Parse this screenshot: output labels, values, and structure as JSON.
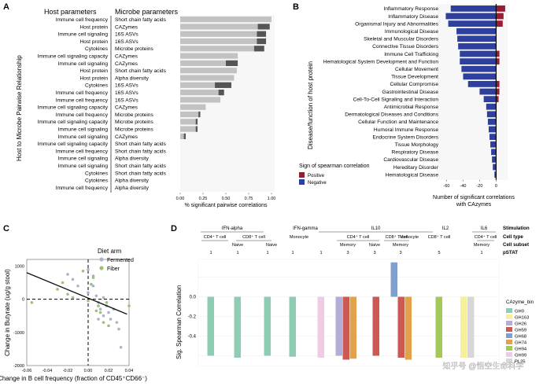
{
  "panels": {
    "a": {
      "letter": "A",
      "header_host": "Host parameters",
      "header_microbe": "Microbe parameters",
      "ylabel": "Host to Microbe Pairwise Relationship",
      "xlabel": "% significant pairwise correlations",
      "xticks": [
        "0.00",
        "0.25",
        "0.50",
        "0.75",
        "1.00"
      ]
    },
    "b": {
      "letter": "B",
      "ylabel": "Disease/function of host protein",
      "xlabel_line1": "Number of significant correlations",
      "xlabel_line2": "with CAzymes",
      "xticks": [
        "-60",
        "-40",
        "-20",
        "0"
      ],
      "legend_title": "Sign of spearman correlation",
      "legend_positive": "Positive",
      "legend_negative": "Negative"
    },
    "c": {
      "letter": "C",
      "legend_title": "Diet arm",
      "legend_fermented": "Fermented",
      "legend_fiber": "Fiber",
      "ylabel": "Change in Butyrate (ug/g stool)",
      "xlabel": "Change in B cell frequency (fraction of CD45⁺CD66⁻)",
      "yticks": [
        "1000",
        "0",
        "-1000",
        "-2000"
      ],
      "xticks": [
        "-0.06",
        "-0.04",
        "-0.02",
        "0.00",
        "0.02",
        "0.04"
      ]
    },
    "d": {
      "letter": "D",
      "ylabel": "Sig. Spearman Correlation",
      "yticks": [
        "0.0",
        "-0.2",
        "-0.4"
      ],
      "row_labels": [
        "Stimulation",
        "Cell type",
        "Cell subset",
        "pSTAT"
      ],
      "stim_labels": [
        "IFN-alpha",
        "IFN-gamma",
        "IL10",
        "IL2",
        "IL6"
      ],
      "celltype_labels": [
        "CD4⁺ T cell",
        "CD8⁺ T cell",
        "Monocyte",
        "CD4⁺ T cell",
        "CD8⁺ T cell",
        "Monocyte",
        "CD8⁺ T cell",
        "CD4⁺ T cell"
      ],
      "subset_labels": [
        "Naive",
        "Naive",
        "Memory",
        "Naive",
        "Memory",
        "Memory"
      ],
      "pstat_labels": [
        "1",
        "1",
        "1",
        "1",
        "1",
        "3",
        "3",
        "3",
        "5",
        "1"
      ],
      "legend_title": "CAzyme_bin",
      "watermark": "知乎号 @悟空生命科学"
    }
  },
  "chart_data": [
    {
      "type": "bar",
      "orientation": "horizontal",
      "panel": "A",
      "categories_host": [
        "Immune cell frequency",
        "Host protein",
        "Immune cell signaling",
        "Host protein",
        "Cytokines",
        "Immune cell signaling capacity",
        "Immune cell signaling",
        "Host protein",
        "Host protein",
        "Cytokines",
        "Immune cell frequency",
        "Immune cell frequency",
        "Immune cell signaling capacity",
        "Immune cell frequency",
        "Immune cell signaling capacity",
        "Immune cell signaling",
        "Immune cell signaling",
        "Immune cell signaling capacity",
        "Immune cell frequency",
        "Immune cell signaling",
        "Immune cell signaling",
        "Cytokines",
        "Cytokines",
        "Immune cell frequency"
      ],
      "categories_microbe": [
        "Short chain fatty acids",
        "CAZymes",
        "16S ASVs",
        "16S ASVs",
        "Microbe proteins",
        "CAZymes",
        "CAZymes",
        "Short chain fatty acids",
        "Alpha diversity",
        "16S ASVs",
        "16S ASVs",
        "16S ASVs",
        "CAZymes",
        "Microbe proteins",
        "Microbe proteins",
        "Microbe proteins",
        "CAZymes",
        "Short chain fatty acids",
        "Short chain fatty acids",
        "Alpha diversity",
        "Short chain fatty acids",
        "Short chain fatty acids",
        "Alpha diversity",
        "Alpha diversity"
      ],
      "series": [
        {
          "name": "total",
          "values": [
            1.0,
            0.98,
            0.94,
            0.94,
            0.92,
            0.63,
            0.63,
            0.62,
            0.59,
            0.56,
            0.48,
            0.44,
            0.28,
            0.22,
            0.19,
            0.19,
            0.06,
            0.0,
            0.0,
            0.0,
            0.0,
            0.0,
            0.0,
            0.0
          ]
        },
        {
          "name": "dark",
          "values": [
            0.0,
            0.13,
            0.1,
            0.1,
            0.11,
            0.0,
            0.13,
            0.0,
            0.0,
            0.18,
            0.06,
            0.0,
            0.0,
            0.02,
            0.02,
            0.02,
            0.02,
            0.0,
            0.0,
            0.0,
            0.0,
            0.0,
            0.0,
            0.0
          ]
        }
      ],
      "xlim": [
        0,
        1.0
      ]
    },
    {
      "type": "bar",
      "orientation": "horizontal",
      "panel": "B",
      "categories": [
        "Inflammatory Response",
        "Inflammatory Disease",
        "Organismal Injury and Abnormalities",
        "Immunological Disease",
        "Skeletal and Muscular Disorders",
        "Connective Tissue Disorders",
        "Immune Cell Trafficking",
        "Hematological System Development and Function",
        "Cellular Movement",
        "Tissue Development",
        "Cellular Compromise",
        "Gastrointestinal Disease",
        "Cell-To-Cell Signaling and Interaction",
        "Antimicrobial Response",
        "Dermatological Diseases and Conditions",
        "Cellular Function and Maintenance",
        "Humoral Immune Response",
        "Endocrine System Disorders",
        "Tissue Morphology",
        "Respiratory Disease",
        "Cardiovascular Disease",
        "Hereditary Disorder",
        "Hematological Disease"
      ],
      "series": [
        {
          "name": "Negative",
          "values": [
            -55,
            -61,
            -58,
            -48,
            -47,
            -46,
            -44,
            -44,
            -42,
            -40,
            -34,
            -20,
            -15,
            -12,
            -11,
            -10,
            -9,
            -8,
            -7,
            -6,
            -5,
            -4,
            -2
          ]
        },
        {
          "name": "Positive",
          "values": [
            11,
            9,
            8,
            0,
            0,
            0,
            4,
            4,
            0,
            0,
            4,
            4,
            3,
            0,
            0,
            0,
            0,
            0,
            0,
            0,
            0,
            0,
            0
          ]
        }
      ],
      "xlim": [
        -70,
        12
      ],
      "colors": {
        "Positive": "#9b1b30",
        "Negative": "#2f3f9e"
      }
    },
    {
      "type": "scatter",
      "panel": "C",
      "series": [
        {
          "name": "Fermented",
          "color": "#a8b4cf",
          "points": [
            [
              -0.02,
              750
            ],
            [
              -0.015,
              600
            ],
            [
              -0.01,
              400
            ],
            [
              0.0,
              900
            ],
            [
              0.005,
              700
            ],
            [
              0.005,
              400
            ],
            [
              0.008,
              100
            ],
            [
              0.01,
              -100
            ],
            [
              0.012,
              -300
            ],
            [
              0.015,
              -500
            ],
            [
              0.018,
              -200
            ],
            [
              0.02,
              -400
            ],
            [
              0.022,
              -600
            ],
            [
              0.025,
              -300
            ],
            [
              0.03,
              -900
            ],
            [
              0.032,
              -1450
            ],
            [
              0.015,
              50
            ],
            [
              0.0,
              200
            ],
            [
              0.01,
              -600
            ],
            [
              0.028,
              -700
            ]
          ]
        },
        {
          "name": "Fiber",
          "color": "#9cc27a",
          "points": [
            [
              -0.055,
              -100
            ],
            [
              -0.03,
              300
            ],
            [
              -0.025,
              500
            ],
            [
              -0.02,
              150
            ],
            [
              -0.015,
              50
            ],
            [
              -0.005,
              850
            ],
            [
              0.0,
              -50
            ],
            [
              0.003,
              450
            ],
            [
              0.005,
              650
            ],
            [
              0.008,
              -350
            ],
            [
              0.01,
              -200
            ],
            [
              0.012,
              -400
            ],
            [
              0.015,
              -700
            ],
            [
              0.02,
              -800
            ],
            [
              0.018,
              -100
            ],
            [
              0.04,
              -200
            ]
          ]
        }
      ],
      "fit_line": [
        [
          -0.06,
          800
        ],
        [
          0.038,
          -450
        ]
      ],
      "xlim": [
        -0.06,
        0.04
      ],
      "ylim": [
        -2000,
        1200
      ]
    },
    {
      "type": "bar",
      "panel": "D",
      "series": [
        {
          "name": "GH0",
          "color": "#8ecdb2"
        },
        {
          "name": "GH163",
          "color": "#f7ef9a"
        },
        {
          "name": "GH26",
          "color": "#b4aed6"
        },
        {
          "name": "GH59",
          "color": "#cc5a52"
        },
        {
          "name": "GH68",
          "color": "#7f9fcf"
        },
        {
          "name": "GH74",
          "color": "#e3a14d"
        },
        {
          "name": "GH94",
          "color": "#a3c95a"
        },
        {
          "name": "GH99",
          "color": "#f0cbe4"
        },
        {
          "name": "PL35",
          "color": "#d7d7d7"
        }
      ],
      "bars": [
        {
          "group": 0,
          "bin": "GH0",
          "value": -0.6
        },
        {
          "group": 1,
          "bin": "GH0",
          "value": -0.62
        },
        {
          "group": 2,
          "bin": "GH0",
          "value": -0.6
        },
        {
          "group": 3,
          "bin": "GH0",
          "value": -0.61
        },
        {
          "group": 4,
          "bin": "GH99",
          "value": -0.62
        },
        {
          "group": 5,
          "bin": "GH26",
          "value": -0.6
        },
        {
          "group": 5,
          "bin": "GH59",
          "value": -0.64
        },
        {
          "group": 5,
          "bin": "GH74",
          "value": -0.63
        },
        {
          "group": 6,
          "bin": "GH59",
          "value": -0.6
        },
        {
          "group": 7,
          "bin": "GH68",
          "value": 0.35
        },
        {
          "group": 7,
          "bin": "GH59",
          "value": -0.62
        },
        {
          "group": 7,
          "bin": "GH74",
          "value": -0.64
        },
        {
          "group": 8,
          "bin": "GH94",
          "value": -0.62
        },
        {
          "group": 9,
          "bin": "GH163",
          "value": -0.62
        },
        {
          "group": 9,
          "bin": "PL35",
          "value": -0.62
        }
      ],
      "ylim": [
        -0.7,
        0.38
      ]
    }
  ]
}
